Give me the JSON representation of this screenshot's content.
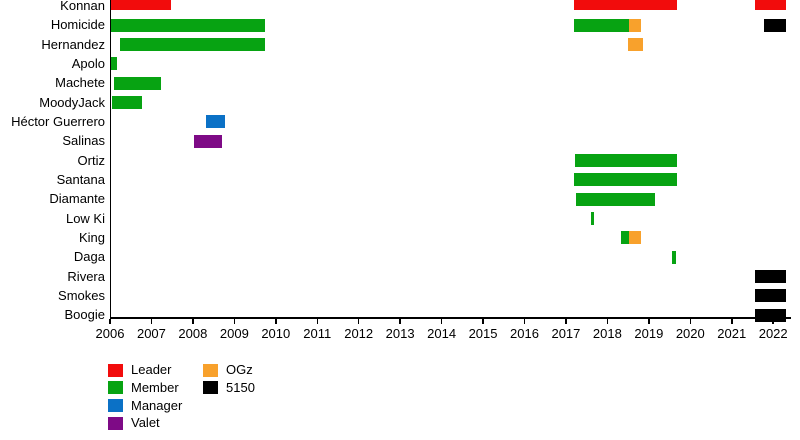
{
  "chart_data": {
    "type": "bar",
    "subtype": "gantt-timeline",
    "title": "",
    "x_axis": {
      "start": 2006,
      "end": 2022.3,
      "ticks": [
        2006,
        2007,
        2008,
        2009,
        2010,
        2011,
        2012,
        2013,
        2014,
        2015,
        2016,
        2017,
        2018,
        2019,
        2020,
        2021,
        2022
      ]
    },
    "grid": false,
    "legend_position": "bottom-left",
    "roles": {
      "Leader": "#f20c0c",
      "Member": "#07a312",
      "Manager": "#0b71c6",
      "Valet": "#7e0a86",
      "OGz": "#f8a12c",
      "5150": "#000000"
    },
    "rows": [
      {
        "label": "Konnan",
        "segments": [
          {
            "start": 2006.0,
            "end": 2007.47,
            "role": "Leader"
          },
          {
            "start": 2017.2,
            "end": 2019.69,
            "role": "Leader"
          },
          {
            "start": 2021.55,
            "end": 2022.3,
            "role": "Leader"
          }
        ]
      },
      {
        "label": "Homicide",
        "segments": [
          {
            "start": 2006.0,
            "end": 2009.73,
            "role": "Member"
          },
          {
            "start": 2017.2,
            "end": 2018.53,
            "role": "Member"
          },
          {
            "start": 2018.53,
            "end": 2018.82,
            "role": "OGz"
          },
          {
            "start": 2021.77,
            "end": 2022.3,
            "role": "5150"
          }
        ]
      },
      {
        "label": "Hernandez",
        "segments": [
          {
            "start": 2006.25,
            "end": 2009.73,
            "role": "Member"
          },
          {
            "start": 2018.5,
            "end": 2018.85,
            "role": "OGz"
          }
        ]
      },
      {
        "label": "Apolo",
        "segments": [
          {
            "start": 2006.02,
            "end": 2006.16,
            "role": "Member"
          }
        ]
      },
      {
        "label": "Machete",
        "segments": [
          {
            "start": 2006.1,
            "end": 2007.24,
            "role": "Member"
          }
        ]
      },
      {
        "label": "MoodyJack",
        "segments": [
          {
            "start": 2006.05,
            "end": 2006.78,
            "role": "Member"
          }
        ]
      },
      {
        "label": "Héctor Guerrero",
        "segments": [
          {
            "start": 2008.32,
            "end": 2008.78,
            "role": "Manager"
          }
        ]
      },
      {
        "label": "Salinas",
        "segments": [
          {
            "start": 2008.03,
            "end": 2008.71,
            "role": "Valet"
          }
        ]
      },
      {
        "label": "Ortiz",
        "segments": [
          {
            "start": 2017.22,
            "end": 2019.69,
            "role": "Member"
          }
        ]
      },
      {
        "label": "Santana",
        "segments": [
          {
            "start": 2017.2,
            "end": 2019.69,
            "role": "Member"
          }
        ]
      },
      {
        "label": "Diamante",
        "segments": [
          {
            "start": 2017.25,
            "end": 2019.14,
            "role": "Member"
          }
        ]
      },
      {
        "label": "Low Ki",
        "segments": [
          {
            "start": 2017.6,
            "end": 2017.67,
            "role": "Member"
          }
        ]
      },
      {
        "label": "King",
        "segments": [
          {
            "start": 2018.33,
            "end": 2018.53,
            "role": "Member"
          },
          {
            "start": 2018.53,
            "end": 2018.82,
            "role": "OGz"
          }
        ]
      },
      {
        "label": "Daga",
        "segments": [
          {
            "start": 2019.57,
            "end": 2019.65,
            "role": "Member"
          }
        ]
      },
      {
        "label": "Rivera",
        "segments": [
          {
            "start": 2021.55,
            "end": 2022.3,
            "role": "5150"
          }
        ]
      },
      {
        "label": "Smokes",
        "segments": [
          {
            "start": 2021.55,
            "end": 2022.3,
            "role": "5150"
          }
        ]
      },
      {
        "label": "Boogie",
        "segments": [
          {
            "start": 2021.55,
            "end": 2022.3,
            "role": "5150"
          }
        ]
      }
    ],
    "legend": [
      {
        "label": "Leader",
        "color": "#f20c0c",
        "column": 0
      },
      {
        "label": "Member",
        "color": "#07a312",
        "column": 0
      },
      {
        "label": "Manager",
        "color": "#0b71c6",
        "column": 0
      },
      {
        "label": "Valet",
        "color": "#7e0a86",
        "column": 0
      },
      {
        "label": "OGz",
        "color": "#f8a12c",
        "column": 1
      },
      {
        "label": "5150",
        "color": "#000000",
        "column": 1
      }
    ]
  }
}
